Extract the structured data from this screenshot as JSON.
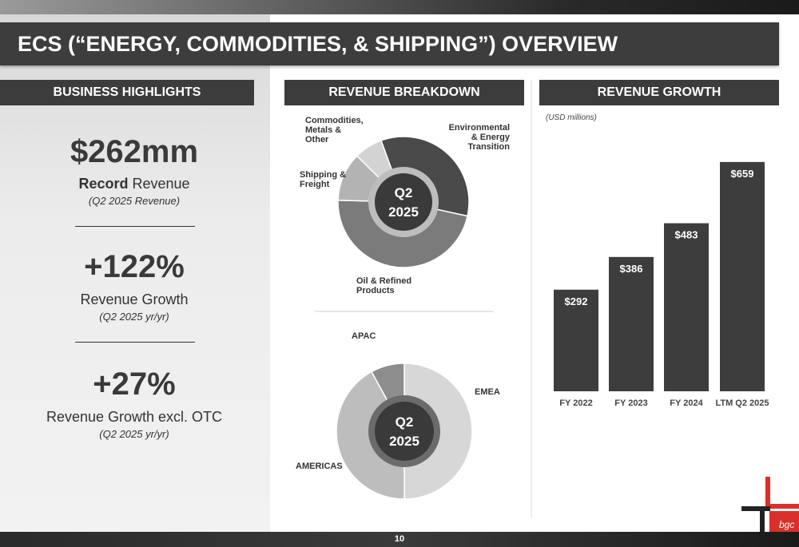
{
  "title": "ECS (“ENERGY, COMMODITIES, & SHIPPING”) OVERVIEW",
  "page_number": "10",
  "logo": "bgc",
  "highlights": {
    "header": "BUSINESS HIGHLIGHTS",
    "items": [
      {
        "value": "$262mm",
        "label_bold": "Record",
        "label": " Revenue",
        "note": "(Q2 2025 Revenue)"
      },
      {
        "value": "+122%",
        "label": "Revenue Growth",
        "note": "(Q2 2025 yr/yr)"
      },
      {
        "value": "+27%",
        "label": "Revenue Growth excl. OTC",
        "note": "(Q2 2025 yr/yr)"
      }
    ]
  },
  "chart_data": [
    {
      "type": "donut",
      "header": "REVENUE BREAKDOWN",
      "center_label": [
        "Q2",
        "2025"
      ],
      "categories": [
        "Environmental & Energy Transition",
        "Oil & Refined Products",
        "Shipping & Freight",
        "Commodities, Metals & Other"
      ],
      "values": [
        34,
        47,
        12,
        7
      ],
      "colors": [
        "#4a4a4a",
        "#7b7b7b",
        "#b3b3b3",
        "#d3d3d3"
      ]
    },
    {
      "type": "donut",
      "center_label": [
        "Q2",
        "2025"
      ],
      "categories": [
        "EMEA",
        "AMERICAS",
        "APAC"
      ],
      "values": [
        50,
        42,
        8
      ],
      "colors": [
        "#d7d7d7",
        "#bdbdbd",
        "#8d8d8d"
      ]
    },
    {
      "type": "bar",
      "header": "REVENUE GROWTH",
      "subtitle": "(USD millions)",
      "categories": [
        "FY 2022",
        "FY 2023",
        "FY 2024",
        "LTM Q2 2025"
      ],
      "values": [
        292,
        386,
        483,
        659
      ],
      "value_labels": [
        "$292",
        "$386",
        "$483",
        "$659"
      ],
      "color": "#3d3d3d",
      "ylim": [
        0,
        700
      ]
    }
  ]
}
